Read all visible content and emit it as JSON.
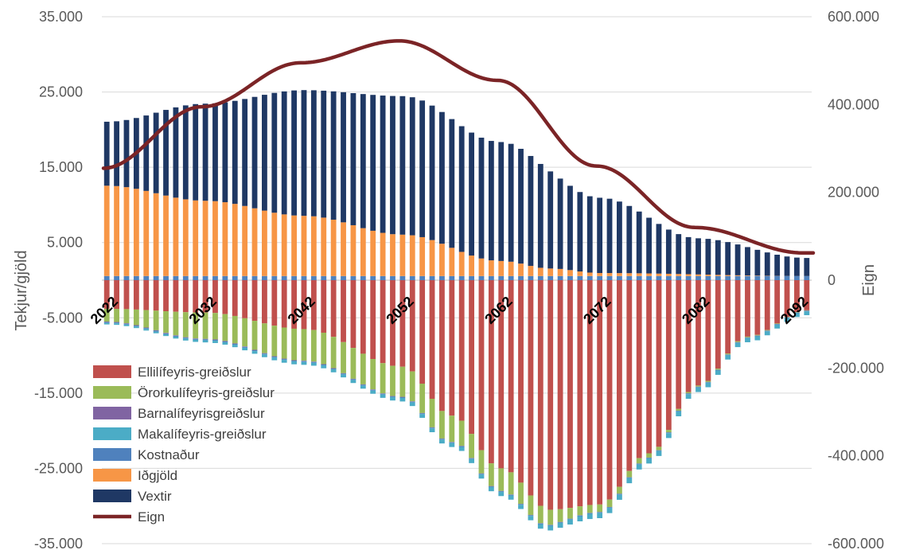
{
  "chart_data": {
    "type": "bar",
    "subtype": "stacked-bar-with-line-secondary-axis",
    "title": "",
    "ylabel": "Tekjur/gjöld",
    "y2label": "Eign",
    "ylim": [
      -35000,
      35000
    ],
    "y2lim": [
      -600000,
      600000
    ],
    "yticks": [
      "35.000",
      "25.000",
      "15.000",
      "5.000",
      "-5.000",
      "-15.000",
      "-25.000",
      "-35.000"
    ],
    "yticks_values": [
      35000,
      25000,
      15000,
      5000,
      -5000,
      -15000,
      -25000,
      -35000
    ],
    "y2ticks": [
      "600.000",
      "400.000",
      "200.000",
      "0",
      "-200.000",
      "-400.000",
      "-600.000"
    ],
    "y2ticks_values": [
      600000,
      400000,
      200000,
      0,
      -200000,
      -400000,
      -600000
    ],
    "x_start": 2022,
    "x_end": 2093,
    "x_labels": [
      "2022",
      "2032",
      "2042",
      "2052",
      "2062",
      "2072",
      "2082",
      "2092"
    ],
    "grid": true,
    "legend_position": "bottom-left",
    "colors": {
      "ellilifeyris": "#c0504d",
      "ororkulifeyris": "#9bbb59",
      "barnalifeyris": "#8064a2",
      "makalifeyris": "#4bacc6",
      "kostnadur": "#4f81bd",
      "idgjold": "#f79646",
      "vextir": "#1f3864",
      "eign": "#7b2426"
    },
    "series": [
      {
        "name": "Ellilífeyris-greiðslur",
        "key": "ellilifeyris",
        "type": "bar",
        "years": [
          2022,
          2032,
          2042,
          2052,
          2057,
          2062,
          2067,
          2072,
          2077,
          2082,
          2087,
          2093
        ],
        "values": [
          -3800,
          -4300,
          -6500,
          -11500,
          -18000,
          -25000,
          -30500,
          -29800,
          -23000,
          -14000,
          -7500,
          -4000
        ]
      },
      {
        "name": "Örorkulífeyris-greiðslur",
        "key": "ororkulifeyris",
        "type": "bar",
        "years": [
          2022,
          2032,
          2042,
          2052,
          2062,
          2072,
          2082,
          2093
        ],
        "values": [
          -1700,
          -3500,
          -4200,
          -4000,
          -3000,
          -1000,
          -150,
          -50
        ]
      },
      {
        "name": "Barnalífeyrisgreiðslur",
        "key": "barnalifeyris",
        "type": "bar",
        "years": [
          2022,
          2093
        ],
        "values": [
          -60,
          -20
        ]
      },
      {
        "name": "Makalífeyris-greiðslur",
        "key": "makalifeyris",
        "type": "bar",
        "years": [
          2022,
          2042,
          2062,
          2072,
          2093
        ],
        "values": [
          -200,
          -380,
          -550,
          -700,
          -500
        ]
      },
      {
        "name": "Kostnaður",
        "key": "kostnadur",
        "type": "bar",
        "years": [
          2022,
          2093
        ],
        "values": [
          -120,
          -80
        ]
      },
      {
        "name": "Iðgjöld",
        "key": "idgjold",
        "type": "bar",
        "years": [
          2022,
          2032,
          2042,
          2052,
          2062,
          2067,
          2072,
          2093
        ],
        "values": [
          12000,
          10000,
          8000,
          5500,
          2000,
          1000,
          400,
          0
        ]
      },
      {
        "name": "Vextir",
        "key": "vextir",
        "type": "bar",
        "years": [
          2022,
          2032,
          2042,
          2052,
          2062,
          2072,
          2082,
          2093
        ],
        "values": [
          8500,
          12900,
          16700,
          18400,
          15800,
          10000,
          4800,
          2400
        ]
      },
      {
        "name": "Eign",
        "key": "eign",
        "type": "line",
        "axis": "secondary",
        "years": [
          2022,
          2032,
          2042,
          2052,
          2062,
          2072,
          2082,
          2093
        ],
        "values": [
          255000,
          395000,
          495000,
          545000,
          455000,
          260000,
          120000,
          62000
        ]
      }
    ],
    "positive_base": {
      "name": "Kostnaður",
      "key": "kostnadur",
      "value": 550
    }
  }
}
